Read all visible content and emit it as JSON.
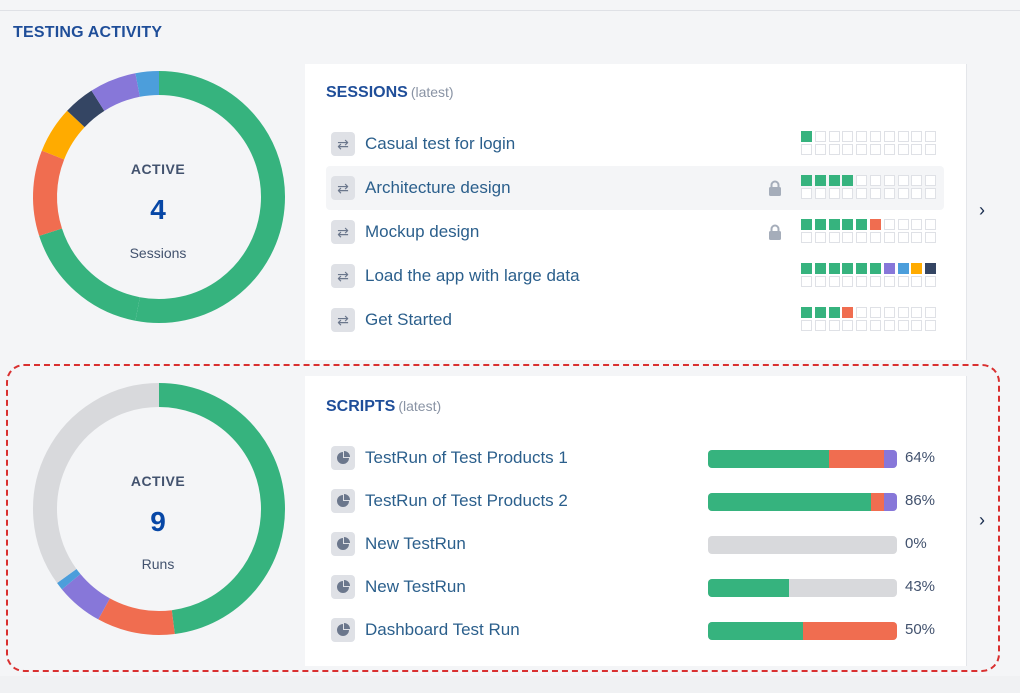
{
  "header": {
    "title": "TESTING ACTIVITY"
  },
  "colors": {
    "pass": "#36b37e",
    "fail": "#f06d50",
    "blocked": "#ffab00",
    "skipped": "#8777d9",
    "info": "#4c9edb",
    "dark": "#344563",
    "empty": "#d8d9dc"
  },
  "sessions": {
    "title": "SESSIONS",
    "subtitle": "(latest)",
    "active_label": "ACTIVE",
    "count": "4",
    "unit": "Sessions",
    "donut": [
      {
        "color": "pass",
        "fraction": 0.53
      },
      {
        "color": "pass",
        "fraction": 0.17
      },
      {
        "color": "fail",
        "fraction": 0.11
      },
      {
        "color": "blocked",
        "fraction": 0.06
      },
      {
        "color": "dark",
        "fraction": 0.04
      },
      {
        "color": "skipped",
        "fraction": 0.06
      },
      {
        "color": "info",
        "fraction": 0.03
      }
    ],
    "items": [
      {
        "name": "Casual test for login",
        "locked": false,
        "highlight": false,
        "cells": [
          "pass"
        ]
      },
      {
        "name": "Architecture design",
        "locked": true,
        "highlight": true,
        "cells": [
          "pass",
          "pass",
          "pass",
          "pass"
        ]
      },
      {
        "name": "Mockup design",
        "locked": true,
        "highlight": false,
        "cells": [
          "pass",
          "pass",
          "pass",
          "pass",
          "pass",
          "fail"
        ]
      },
      {
        "name": "Load the app with large data",
        "locked": false,
        "highlight": false,
        "cells": [
          "pass",
          "pass",
          "pass",
          "pass",
          "pass",
          "pass",
          "skipped",
          "info",
          "blocked",
          "dark"
        ]
      },
      {
        "name": "Get Started",
        "locked": false,
        "highlight": false,
        "cells": [
          "pass",
          "pass",
          "pass",
          "fail"
        ]
      }
    ]
  },
  "scripts": {
    "title": "SCRIPTS",
    "subtitle": "(latest)",
    "active_label": "ACTIVE",
    "count": "9",
    "unit": "Runs",
    "donut": [
      {
        "color": "pass",
        "fraction": 0.48
      },
      {
        "color": "fail",
        "fraction": 0.1
      },
      {
        "color": "skipped",
        "fraction": 0.06
      },
      {
        "color": "info",
        "fraction": 0.01
      },
      {
        "color": "empty",
        "fraction": 0.35
      }
    ],
    "items": [
      {
        "name": "TestRun of Test Products 1",
        "pct": "64%",
        "segments": [
          {
            "color": "pass",
            "fraction": 0.64
          },
          {
            "color": "fail",
            "fraction": 0.29
          },
          {
            "color": "skipped",
            "fraction": 0.07
          }
        ]
      },
      {
        "name": "TestRun of Test Products 2",
        "pct": "86%",
        "segments": [
          {
            "color": "pass",
            "fraction": 0.86
          },
          {
            "color": "fail",
            "fraction": 0.07
          },
          {
            "color": "skipped",
            "fraction": 0.07
          }
        ]
      },
      {
        "name": "New TestRun",
        "pct": "0%",
        "segments": []
      },
      {
        "name": "New TestRun",
        "pct": "43%",
        "segments": [
          {
            "color": "pass",
            "fraction": 0.43
          }
        ]
      },
      {
        "name": "Dashboard Test Run",
        "pct": "50%",
        "segments": [
          {
            "color": "pass",
            "fraction": 0.5
          },
          {
            "color": "fail",
            "fraction": 0.5
          }
        ]
      }
    ]
  }
}
